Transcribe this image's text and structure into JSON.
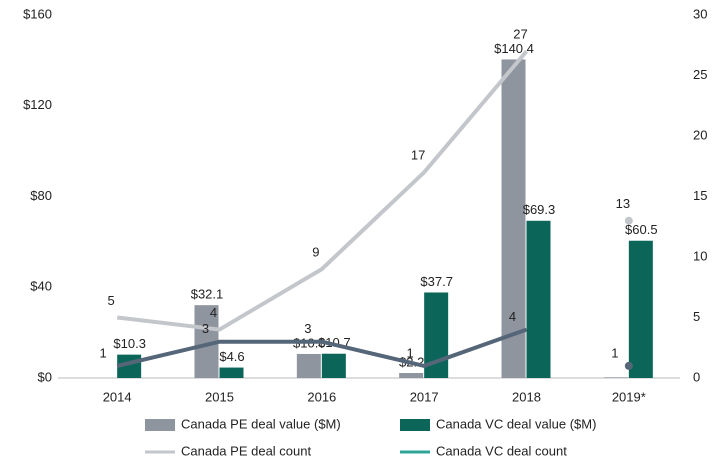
{
  "chart_data": {
    "type": "bar-line",
    "categories": [
      "2014",
      "2015",
      "2016",
      "2017",
      "2018",
      "2019*"
    ],
    "series": [
      {
        "name": "Canada PE deal value ($M)",
        "type": "bar",
        "color": "#8e959f",
        "values": [
          null,
          32.1,
          10.6,
          2.2,
          140.4,
          0.3
        ],
        "value_labels": [
          null,
          "$32.1",
          "$10.6",
          "$2.2",
          "$140.4",
          null
        ]
      },
      {
        "name": "Canada VC deal value ($M)",
        "type": "bar",
        "color": "#0b6659",
        "values": [
          10.3,
          4.6,
          10.7,
          37.7,
          69.3,
          60.5
        ],
        "value_labels": [
          "$10.3",
          "$4.6",
          "$10.7",
          "$37.7",
          "$69.3",
          "$60.5"
        ]
      },
      {
        "name": "Canada PE deal count",
        "type": "line",
        "axis": "y2",
        "color": "#c3c6ca",
        "values": [
          5,
          4,
          9,
          17,
          27,
          13
        ]
      },
      {
        "name": "Canada VC deal count",
        "type": "line",
        "axis": "y2",
        "color": "#566679",
        "legend_color": "#2fa59a",
        "values": [
          1,
          3,
          3,
          1,
          4,
          1
        ]
      }
    ],
    "last_point_disconnected": true,
    "ylim": [
      0,
      160
    ],
    "yticks": [
      {
        "value": 0,
        "label": "$0"
      },
      {
        "value": 40,
        "label": "$40"
      },
      {
        "value": 80,
        "label": "$80"
      },
      {
        "value": 120,
        "label": "$120"
      },
      {
        "value": 160,
        "label": "$160"
      }
    ],
    "y2lim": [
      0,
      30
    ],
    "y2ticks": [
      0,
      5,
      10,
      15,
      20,
      25,
      30
    ],
    "grid": false,
    "legend": "bottom"
  }
}
